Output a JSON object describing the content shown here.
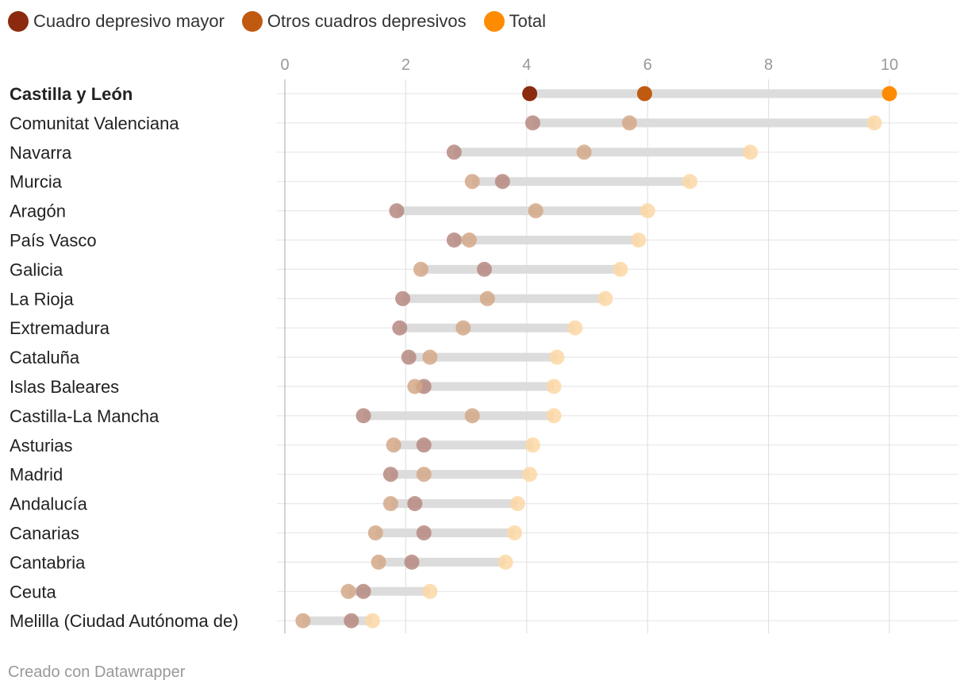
{
  "legend": [
    {
      "label": "Cuadro depresivo mayor",
      "color": "#8B2A0E"
    },
    {
      "label": "Otros cuadros depresivos",
      "color": "#C05A10"
    },
    {
      "label": "Total",
      "color": "#FF8C00"
    }
  ],
  "footer": "Creado con Datawrapper",
  "chart_data": {
    "type": "scatter",
    "subtype": "dot-range",
    "title": "",
    "xlabel": "",
    "ylabel": "",
    "xlim": [
      0,
      11.2
    ],
    "x_ticks": [
      0,
      2,
      4,
      6,
      8,
      10
    ],
    "highlight": "Castilla y León",
    "series": [
      {
        "name": "Cuadro depresivo mayor",
        "color": "#8B2A0E",
        "faded_color": "#B68A80"
      },
      {
        "name": "Otros cuadros depresivos",
        "color": "#C05A10",
        "faded_color": "#D4A888"
      },
      {
        "name": "Total",
        "color": "#FF8C00",
        "faded_color": "#FDD8A6"
      }
    ],
    "categories": [
      "Castilla y León",
      "Comunitat Valenciana",
      "Navarra",
      "Murcia",
      "Aragón",
      "País Vasco",
      "Galicia",
      "La Rioja",
      "Extremadura",
      "Cataluña",
      "Islas Baleares",
      "Castilla-La Mancha",
      "Asturias",
      "Madrid",
      "Andalucía",
      "Canarias",
      "Cantabria",
      "Ceuta",
      "Melilla (Ciudad Autónoma de)"
    ],
    "values": [
      [
        4.05,
        5.95,
        10.0
      ],
      [
        4.1,
        5.7,
        9.75
      ],
      [
        2.8,
        4.95,
        7.7
      ],
      [
        3.6,
        3.1,
        6.7
      ],
      [
        1.85,
        4.15,
        6.0
      ],
      [
        2.8,
        3.05,
        5.85
      ],
      [
        3.3,
        2.25,
        5.55
      ],
      [
        1.95,
        3.35,
        5.3
      ],
      [
        1.9,
        2.95,
        4.8
      ],
      [
        2.05,
        2.4,
        4.5
      ],
      [
        2.3,
        2.15,
        4.45
      ],
      [
        1.3,
        3.1,
        4.45
      ],
      [
        2.3,
        1.8,
        4.1
      ],
      [
        1.75,
        2.3,
        4.05
      ],
      [
        2.15,
        1.75,
        3.85
      ],
      [
        2.3,
        1.5,
        3.8
      ],
      [
        2.1,
        1.55,
        3.65
      ],
      [
        1.3,
        1.05,
        2.4
      ],
      [
        1.1,
        0.3,
        1.45
      ]
    ]
  }
}
